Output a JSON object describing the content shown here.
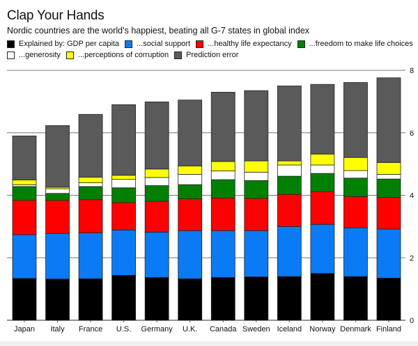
{
  "header": {
    "title": "Clap Your Hands",
    "subtitle": "Nordic countries are the world’s happiest, beating all G-7 states in global index"
  },
  "chart_data": {
    "type": "bar",
    "stacked": true,
    "title": "Clap Your Hands",
    "subtitle": "Nordic countries are the world’s happiest, beating all G-7 states in global index",
    "xlabel": "",
    "ylabel": "",
    "ylim": [
      0,
      8
    ],
    "yticks": [
      0,
      2,
      4,
      6,
      8
    ],
    "y_axis_side": "right",
    "grid": true,
    "legend_position": "top",
    "categories": [
      "Japan",
      "Italy",
      "France",
      "U.S.",
      "Germany",
      "U.K.",
      "Canada",
      "Sweden",
      "Iceland",
      "Norway",
      "Denmark",
      "Finland"
    ],
    "series": [
      {
        "name": "Explained by: GDP per capita",
        "color": "#000000",
        "values": [
          1.34,
          1.32,
          1.33,
          1.44,
          1.37,
          1.33,
          1.37,
          1.39,
          1.4,
          1.5,
          1.4,
          1.35
        ]
      },
      {
        "name": "...social support",
        "color": "#0a7bf5",
        "values": [
          1.4,
          1.46,
          1.47,
          1.45,
          1.45,
          1.54,
          1.5,
          1.48,
          1.6,
          1.57,
          1.56,
          1.57
        ]
      },
      {
        "name": "...healthy life expectancy",
        "color": "#ff0000",
        "values": [
          1.1,
          1.06,
          1.06,
          0.88,
          0.99,
          1.02,
          1.04,
          1.03,
          1.03,
          1.04,
          1.0,
          1.01
        ]
      },
      {
        "name": "...freedom to make life choices",
        "color": "#008000",
        "values": [
          0.44,
          0.22,
          0.42,
          0.47,
          0.5,
          0.45,
          0.59,
          0.57,
          0.58,
          0.59,
          0.59,
          0.59
        ]
      },
      {
        "name": "...generosity",
        "color": "#ffffff",
        "values": [
          0.06,
          0.15,
          0.12,
          0.27,
          0.26,
          0.33,
          0.28,
          0.27,
          0.36,
          0.27,
          0.24,
          0.15
        ]
      },
      {
        "name": "...perceptions of corruption",
        "color": "#ffff00",
        "values": [
          0.15,
          0.05,
          0.18,
          0.13,
          0.27,
          0.27,
          0.3,
          0.36,
          0.13,
          0.35,
          0.42,
          0.38
        ]
      },
      {
        "name": "Prediction error",
        "color": "#5a5a5a",
        "values": [
          1.41,
          1.97,
          2.01,
          2.26,
          2.15,
          2.11,
          2.22,
          2.25,
          2.4,
          2.23,
          2.4,
          2.71
        ]
      }
    ],
    "totals": [
      5.9,
      6.23,
      6.59,
      6.9,
      6.99,
      7.05,
      7.3,
      7.35,
      7.5,
      7.55,
      7.61,
      7.76
    ]
  },
  "legend": {
    "items": [
      {
        "label": "Explained by: GDP per capita",
        "color": "#000000"
      },
      {
        "label": "...social support",
        "color": "#0a7bf5"
      },
      {
        "label": "...healthy life expectancy",
        "color": "#ff0000"
      },
      {
        "label": "...freedom to make life choices",
        "color": "#008000"
      },
      {
        "label": "...generosity",
        "color": "#ffffff"
      },
      {
        "label": "...perceptions of corruption",
        "color": "#ffff00"
      },
      {
        "label": "Prediction error",
        "color": "#5a5a5a"
      }
    ]
  }
}
